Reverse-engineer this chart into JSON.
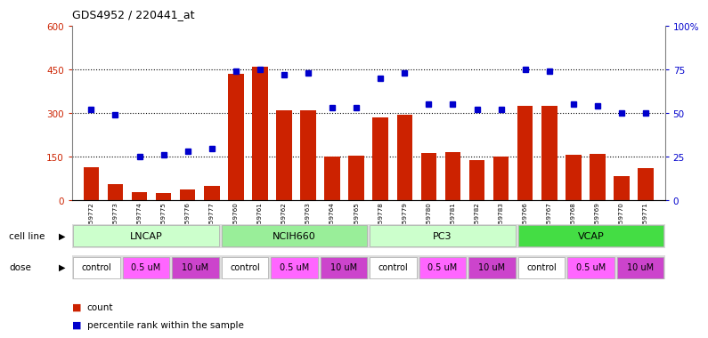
{
  "title": "GDS4952 / 220441_at",
  "samples": [
    "GSM1359772",
    "GSM1359773",
    "GSM1359774",
    "GSM1359775",
    "GSM1359776",
    "GSM1359777",
    "GSM1359760",
    "GSM1359761",
    "GSM1359762",
    "GSM1359763",
    "GSM1359764",
    "GSM1359765",
    "GSM1359778",
    "GSM1359779",
    "GSM1359780",
    "GSM1359781",
    "GSM1359782",
    "GSM1359783",
    "GSM1359766",
    "GSM1359767",
    "GSM1359768",
    "GSM1359769",
    "GSM1359770",
    "GSM1359771"
  ],
  "bar_values": [
    115,
    55,
    30,
    25,
    38,
    50,
    435,
    460,
    310,
    310,
    152,
    155,
    285,
    295,
    162,
    167,
    138,
    150,
    325,
    325,
    158,
    160,
    85,
    110
  ],
  "dot_values": [
    52,
    49,
    25,
    26,
    28,
    30,
    74,
    75,
    72,
    73,
    53,
    53,
    70,
    73,
    55,
    55,
    52,
    52,
    75,
    74,
    55,
    54,
    50,
    50
  ],
  "cell_lines": [
    "LNCAP",
    "NCIH660",
    "PC3",
    "VCAP"
  ],
  "cell_line_colors": [
    "#ccffcc",
    "#99ee99",
    "#ccffcc",
    "#44dd44"
  ],
  "dose_labels": [
    "control",
    "0.5 uM",
    "10 uM",
    "control",
    "0.5 uM",
    "10 uM",
    "control",
    "0.5 uM",
    "10 uM",
    "control",
    "0.5 uM",
    "10 uM"
  ],
  "dose_color_control": "#ffffff",
  "dose_color_low": "#ff66ff",
  "dose_color_high": "#cc44cc",
  "ylim_left": [
    0,
    600
  ],
  "ylim_right": [
    0,
    100
  ],
  "yticks_left": [
    0,
    150,
    300,
    450,
    600
  ],
  "ytick_labels_left": [
    "0",
    "150",
    "300",
    "450",
    "600"
  ],
  "yticks_right": [
    0,
    25,
    50,
    75,
    100
  ],
  "ytick_labels_right": [
    "0",
    "25",
    "50",
    "75",
    "100%"
  ],
  "bar_color": "#cc2200",
  "dot_color": "#0000cc",
  "hgrid_vals": [
    150,
    300,
    450
  ],
  "bg_color": "#ffffff"
}
